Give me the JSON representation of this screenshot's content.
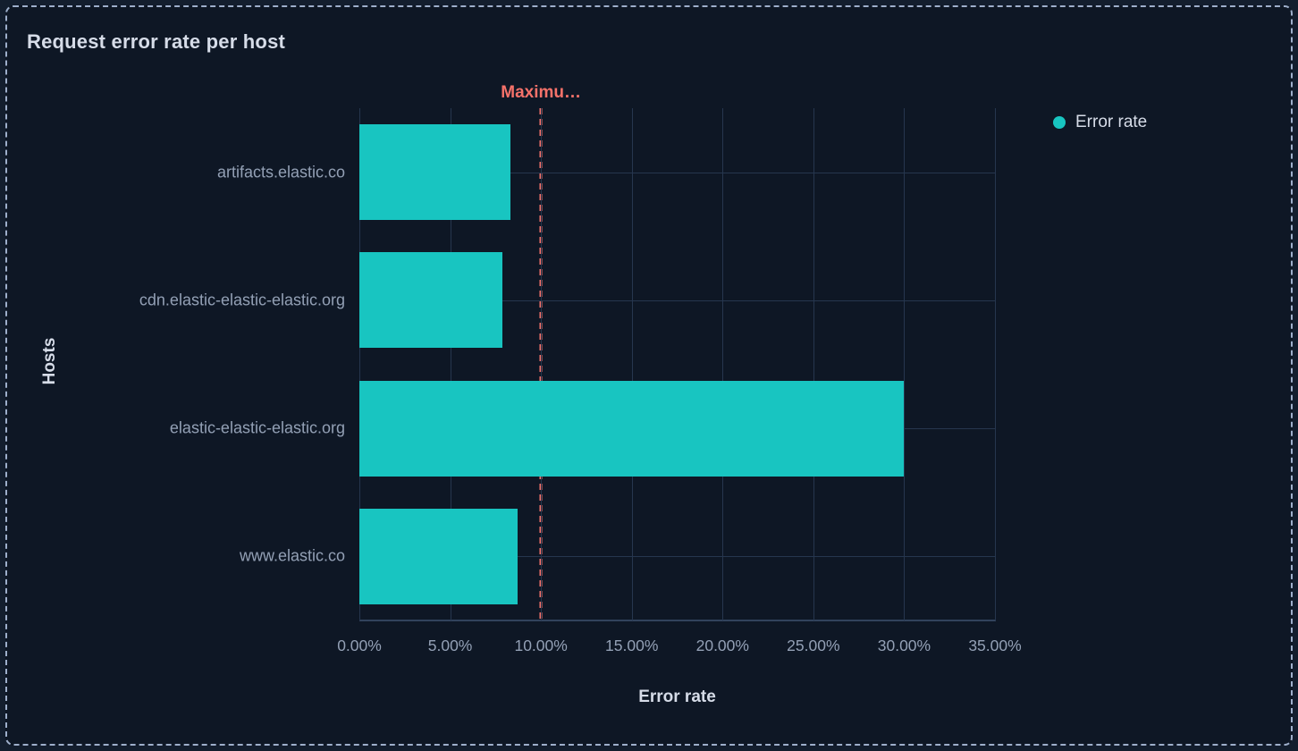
{
  "panel": {
    "title": "Request error rate per host"
  },
  "legend": {
    "position": "right",
    "items": [
      {
        "label": "Error rate",
        "color": "#18C5C1"
      }
    ]
  },
  "colors": {
    "panel_background": "#0E1725",
    "outer_background": "#131E2E",
    "panel_border_dash": "#9EAFCB",
    "gridline": "#26364E",
    "axis_line": "#31425C",
    "bar_teal": "#18C5C1",
    "annotation_red": "#F6726A",
    "bright_text": "#D6DCE8",
    "muted_text": "#93A0B5"
  },
  "chart_data": {
    "type": "bar",
    "orientation": "horizontal",
    "title": "Request error rate per host",
    "series_name": "Error rate",
    "categories": [
      "artifacts.elastic.co",
      "cdn.elastic-elastic-elastic.org",
      "elastic-elastic-elastic.org",
      "www.elastic.co"
    ],
    "values": [
      8.3,
      7.9,
      30.0,
      8.7
    ],
    "value_unit": "%",
    "xlabel": "Error rate",
    "ylabel": "Hosts",
    "xlim": [
      0,
      35
    ],
    "x_tick_values": [
      0,
      5,
      10,
      15,
      20,
      25,
      30,
      35
    ],
    "x_ticks": [
      "0.00%",
      "5.00%",
      "10.00%",
      "15.00%",
      "20.00%",
      "25.00%",
      "30.00%",
      "35.00%"
    ],
    "grid": true,
    "legend_position": "right",
    "bar_color": "#18C5C1",
    "annotation": {
      "label": "Maximu…",
      "x": 10,
      "color": "#F6726A",
      "style": "dashed-vertical-line"
    }
  }
}
